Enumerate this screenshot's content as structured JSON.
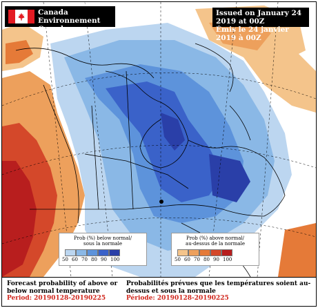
{
  "header": {
    "org_en": "Environment Canada",
    "org_fr": "Environnement Canada",
    "issued_en": "Issued on January 24 2019 at 00Z",
    "issued_fr": "Émis le 24 janvier 2019 à 00Z"
  },
  "legend_below": {
    "title_en": "Prob (%) below normal/",
    "title_fr": "sous la normale",
    "ticks": [
      "50",
      "60",
      "70",
      "80",
      "90",
      "100"
    ],
    "colors": [
      "#bcd6f0",
      "#8ab8e6",
      "#5d93db",
      "#3a62c9",
      "#2a3fa8"
    ]
  },
  "legend_above": {
    "title_en": "Prob (%) above normal/",
    "title_fr": "au-dessus de la normale",
    "ticks": [
      "50",
      "60",
      "70",
      "80",
      "90",
      "100"
    ],
    "colors": [
      "#f4c48b",
      "#eda05c",
      "#e57a38",
      "#d4482a",
      "#b81e1e"
    ]
  },
  "footer": {
    "en_title": "Forecast probability of above or below normal temperature",
    "en_period": "Period: 20190128-20190225",
    "fr_title": "Probabilités prévues que les températures soient au-dessus et sous la normale",
    "fr_period": "Période: 20190128-20190225"
  },
  "colors": {
    "flag_red": "#e31b23",
    "period_red": "#d0261c"
  }
}
